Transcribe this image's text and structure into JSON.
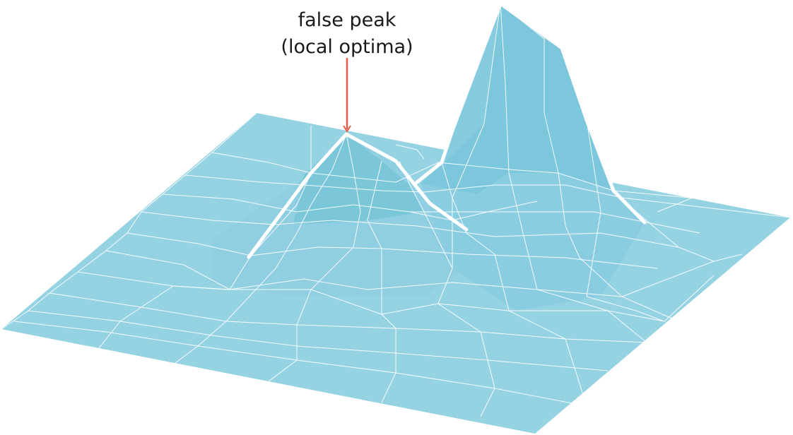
{
  "annotation": {
    "line1": "false peak",
    "line2": "(local optima)"
  },
  "colors": {
    "surface": "#96d3e2",
    "surface_shade": "#7dc7da",
    "surface_dark": "#6bbdd2",
    "grid_line": "#ffffff",
    "arrow": "#e2604a",
    "text": "#1a1a1a"
  }
}
